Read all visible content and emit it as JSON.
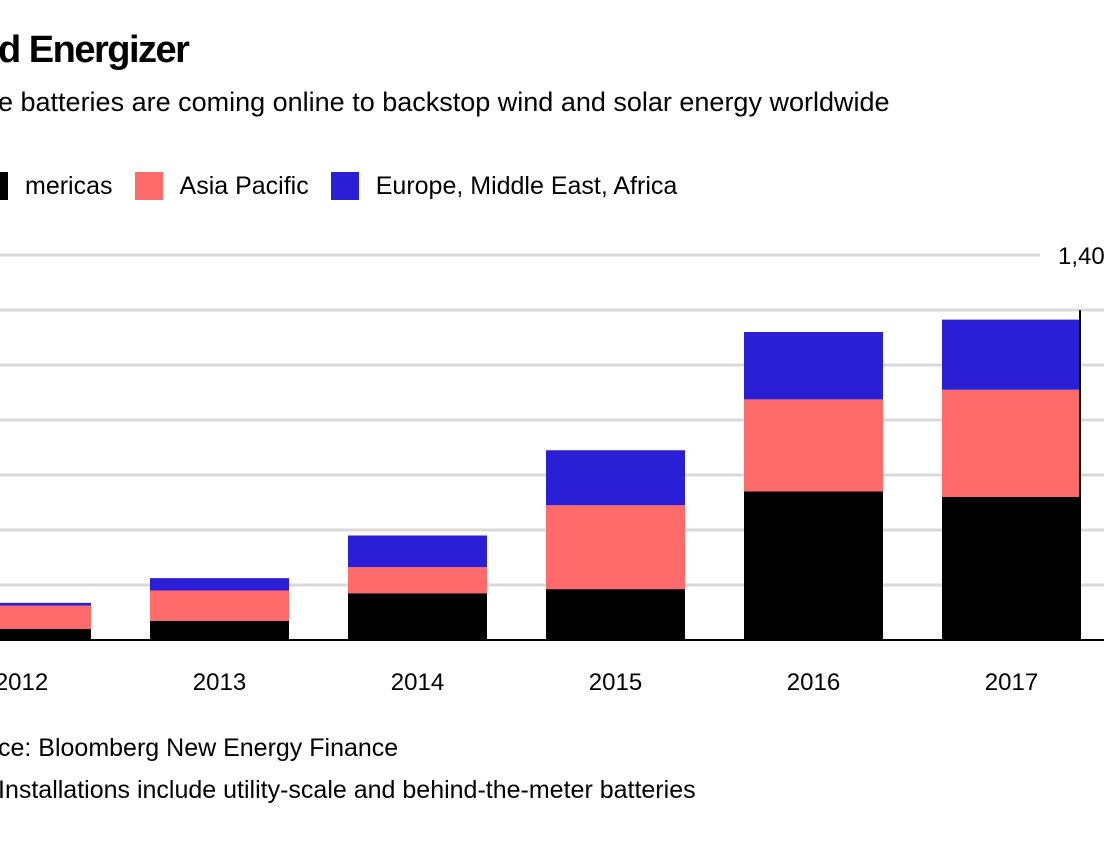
{
  "header": {
    "title": "d Energizer",
    "subtitle": "e batteries are coming online to backstop wind and solar energy worldwide"
  },
  "footer": {
    "source": "ce: Bloomberg New Energy Finance",
    "note": "Installations include utility-scale and behind-the-meter batteries"
  },
  "colors": {
    "americas": "#000000",
    "asia_pacific": "#ff6a6a",
    "emea": "#2b1fd6",
    "grid": "#d9d9d9"
  },
  "chart_data": {
    "type": "bar",
    "stacked": true,
    "categories": [
      "2012",
      "2013",
      "2014",
      "2015",
      "2016",
      "2017"
    ],
    "series": [
      {
        "name": "mericas",
        "color": "#000000",
        "values": [
          40,
          70,
          170,
          185,
          540,
          520
        ]
      },
      {
        "name": "Asia Pacific",
        "color": "#ff6a6a",
        "values": [
          85,
          110,
          95,
          305,
          335,
          390
        ]
      },
      {
        "name": "Europe, Middle East, Africa",
        "color": "#2b1fd6",
        "values": [
          10,
          45,
          115,
          200,
          245,
          255
        ]
      }
    ],
    "y_tick_label": "1,40",
    "ylim": [
      0,
      1400
    ],
    "y_gridlines": [
      200,
      400,
      600,
      800,
      1000,
      1200,
      1400
    ],
    "grid": true,
    "legend_position": "top-left"
  }
}
